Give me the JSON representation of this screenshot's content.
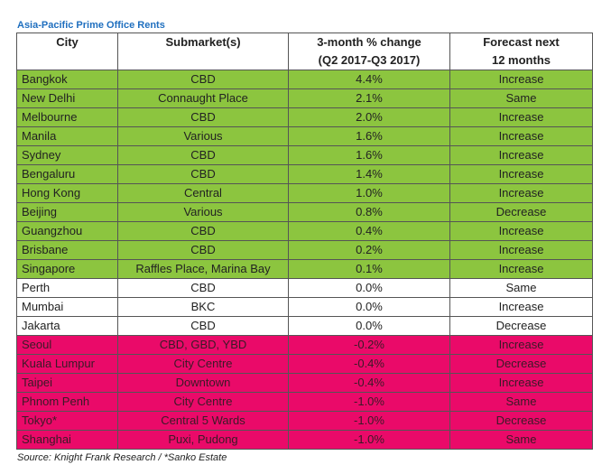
{
  "title": "Asia-Pacific Prime Office Rents",
  "headers": {
    "city": "City",
    "submarket": "Submarket(s)",
    "change_line1": "3-month % change",
    "change_line2": "(Q2 2017-Q3 2017)",
    "forecast_line1": "Forecast next",
    "forecast_line2": "12 months"
  },
  "colors": {
    "positive": "#8cc53f",
    "flat": "#ffffff",
    "negative": "#ea0a69"
  },
  "rows": [
    {
      "city": "Bangkok",
      "submarket": "CBD",
      "change": "4.4%",
      "forecast": "Increase",
      "group": "green"
    },
    {
      "city": "New Delhi",
      "submarket": "Connaught Place",
      "change": "2.1%",
      "forecast": "Same",
      "group": "green"
    },
    {
      "city": "Melbourne",
      "submarket": "CBD",
      "change": "2.0%",
      "forecast": "Increase",
      "group": "green"
    },
    {
      "city": "Manila",
      "submarket": "Various",
      "change": "1.6%",
      "forecast": "Increase",
      "group": "green"
    },
    {
      "city": "Sydney",
      "submarket": "CBD",
      "change": "1.6%",
      "forecast": "Increase",
      "group": "green"
    },
    {
      "city": "Bengaluru",
      "submarket": "CBD",
      "change": "1.4%",
      "forecast": "Increase",
      "group": "green"
    },
    {
      "city": "Hong Kong",
      "submarket": "Central",
      "change": "1.0%",
      "forecast": "Increase",
      "group": "green"
    },
    {
      "city": "Beijing",
      "submarket": "Various",
      "change": "0.8%",
      "forecast": "Decrease",
      "group": "green"
    },
    {
      "city": "Guangzhou",
      "submarket": "CBD",
      "change": "0.4%",
      "forecast": "Increase",
      "group": "green"
    },
    {
      "city": "Brisbane",
      "submarket": "CBD",
      "change": "0.2%",
      "forecast": "Increase",
      "group": "green"
    },
    {
      "city": "Singapore",
      "submarket": "Raffles Place, Marina Bay",
      "change": "0.1%",
      "forecast": "Increase",
      "group": "green"
    },
    {
      "city": "Perth",
      "submarket": "CBD",
      "change": "0.0%",
      "forecast": "Same",
      "group": "white"
    },
    {
      "city": "Mumbai",
      "submarket": "BKC",
      "change": "0.0%",
      "forecast": "Increase",
      "group": "white"
    },
    {
      "city": "Jakarta",
      "submarket": "CBD",
      "change": "0.0%",
      "forecast": "Decrease",
      "group": "white"
    },
    {
      "city": "Seoul",
      "submarket": "CBD, GBD, YBD",
      "change": "-0.2%",
      "forecast": "Increase",
      "group": "pink"
    },
    {
      "city": "Kuala Lumpur",
      "submarket": "City Centre",
      "change": "-0.4%",
      "forecast": "Decrease",
      "group": "pink"
    },
    {
      "city": "Taipei",
      "submarket": "Downtown",
      "change": "-0.4%",
      "forecast": "Increase",
      "group": "pink"
    },
    {
      "city": "Phnom Penh",
      "submarket": "City Centre",
      "change": "-1.0%",
      "forecast": "Same",
      "group": "pink"
    },
    {
      "city": "Tokyo*",
      "submarket": "Central 5 Wards",
      "change": "-1.0%",
      "forecast": "Decrease",
      "group": "pink"
    },
    {
      "city": "Shanghai",
      "submarket": "Puxi, Pudong",
      "change": "-1.0%",
      "forecast": "Same",
      "group": "pink"
    }
  ],
  "source": "Source: Knight Frank Research / *Sanko Estate"
}
